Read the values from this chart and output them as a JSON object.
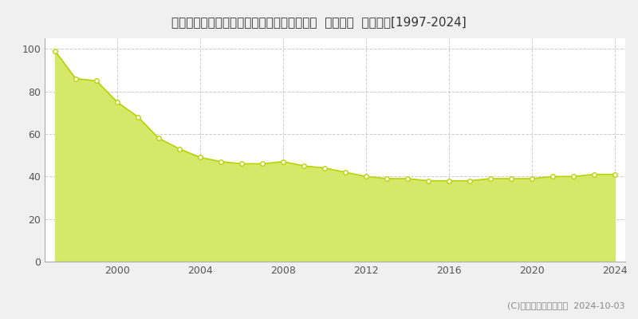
{
  "title": "千葉県松戸市小金きよしケ丘４丁目３番１１  基準地価  地価推移[1997-2024]",
  "years": [
    1997,
    1998,
    1999,
    2000,
    2001,
    2002,
    2003,
    2004,
    2005,
    2006,
    2007,
    2008,
    2009,
    2010,
    2011,
    2012,
    2013,
    2014,
    2015,
    2016,
    2017,
    2018,
    2019,
    2020,
    2021,
    2022,
    2023,
    2024
  ],
  "values": [
    99,
    86,
    85,
    75,
    68,
    58,
    53,
    49,
    47,
    46,
    46,
    47,
    45,
    44,
    42,
    40,
    39,
    39,
    38,
    38,
    38,
    39,
    39,
    39,
    40,
    40,
    41,
    41
  ],
  "fill_color": "#d4e96a",
  "line_color": "#b8d400",
  "marker_color": "#ffffff",
  "marker_edge_color": "#b8d400",
  "bg_color": "#f0f0f0",
  "plot_bg_color": "#ffffff",
  "grid_color": "#cccccc",
  "copyright_text": "(C)土地価格ドットコム  2024-10-03",
  "ylim": [
    0,
    105
  ],
  "yticks": [
    0,
    20,
    40,
    60,
    80,
    100
  ],
  "xtick_years": [
    2000,
    2004,
    2008,
    2012,
    2016,
    2020,
    2024
  ],
  "title_fontsize": 11,
  "axis_fontsize": 9,
  "legend_fontsize": 9,
  "copyright_fontsize": 8
}
